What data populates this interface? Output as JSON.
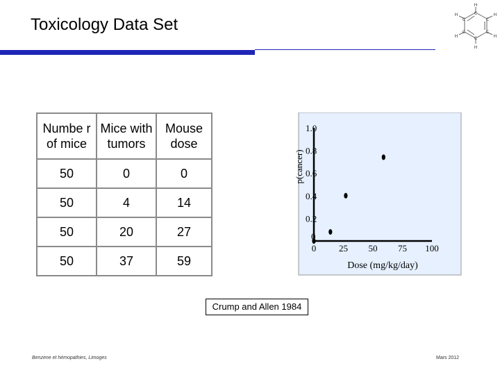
{
  "title": "Toxicology Data Set",
  "table": {
    "headers": [
      "Numbe r of mice",
      "Mice with tumors",
      "Mouse dose"
    ],
    "rows": [
      [
        "50",
        "0",
        "0"
      ],
      [
        "50",
        "4",
        "14"
      ],
      [
        "50",
        "20",
        "27"
      ],
      [
        "50",
        "37",
        "59"
      ]
    ]
  },
  "chart_data": {
    "type": "scatter",
    "xlabel": "Dose (mg/kg/day)",
    "ylabel": "p(cancer)",
    "x_ticks": [
      "0",
      "25",
      "50",
      "75",
      "100"
    ],
    "y_ticks": [
      "0",
      "0.2",
      "0.4",
      "0.6",
      "0.8",
      "1.0"
    ],
    "xlim": [
      0,
      100
    ],
    "ylim": [
      0,
      1.0
    ],
    "points": [
      {
        "x": 0,
        "y": 0
      },
      {
        "x": 14,
        "y": 0.08
      },
      {
        "x": 27,
        "y": 0.4
      },
      {
        "x": 59,
        "y": 0.74
      }
    ],
    "background": "#e6f0ff",
    "axis_color": "#000000"
  },
  "source_label": "Crump and Allen 1984",
  "footer": {
    "left": "Benzene et hémopathies, Limoges",
    "right": "Mars 2012"
  },
  "colors": {
    "accent": "#1f26b7"
  }
}
